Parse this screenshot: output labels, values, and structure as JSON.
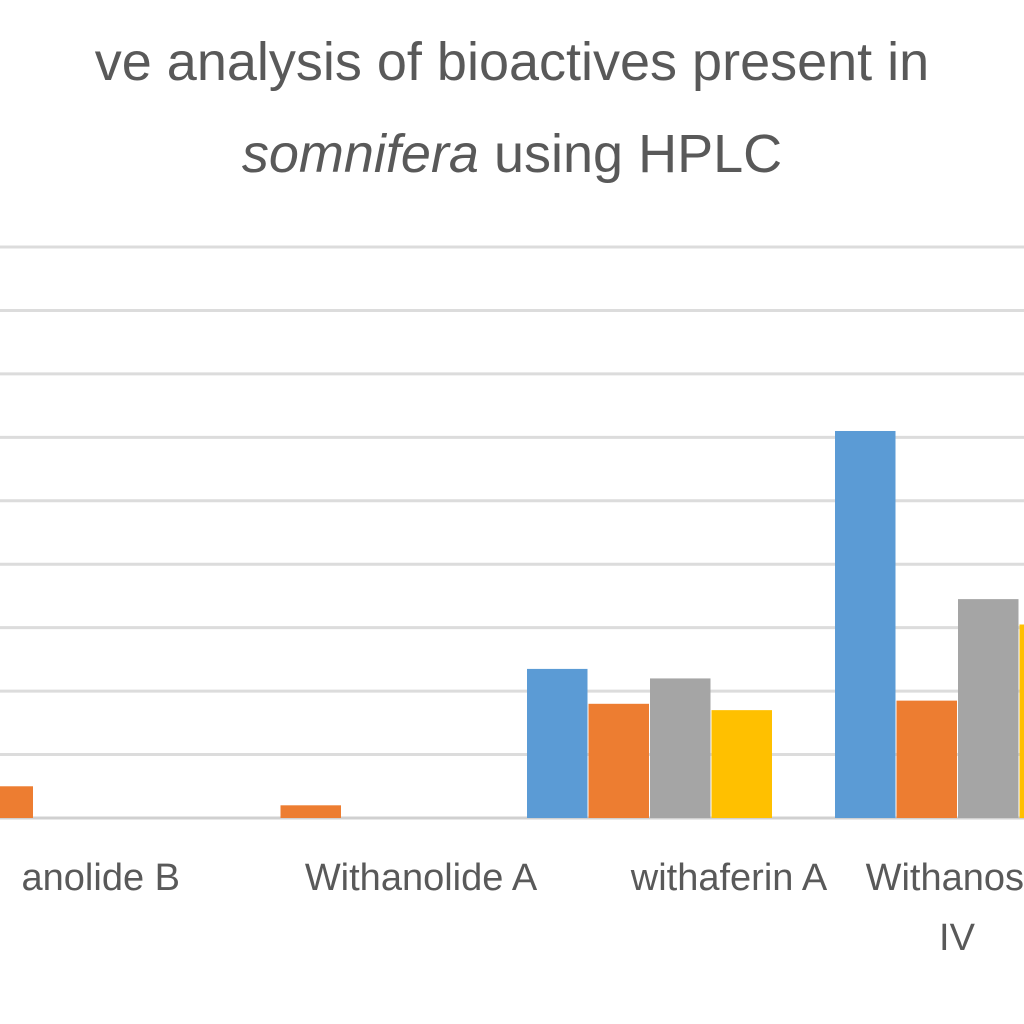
{
  "chart_data": {
    "type": "bar",
    "title_line1": "ve analysis of  bioactives present in",
    "title_line2_italic": "somnifera",
    "title_line2_rest": " using HPLC",
    "categories": [
      {
        "label_lines": [
          "anolide B"
        ]
      },
      {
        "label_lines": [
          "Withanolide A"
        ]
      },
      {
        "label_lines": [
          "withaferin A"
        ]
      },
      {
        "label_lines": [
          "Withanos",
          "IV"
        ]
      }
    ],
    "series": [
      {
        "color": "#5B9BD5",
        "values": [
          0,
          0,
          2.35,
          6.1
        ]
      },
      {
        "color": "#ED7D31",
        "values": [
          0.5,
          0.2,
          1.8,
          1.85
        ]
      },
      {
        "color": "#A5A5A5",
        "values": [
          0,
          0,
          2.2,
          3.45
        ]
      },
      {
        "color": "#FFC000",
        "values": [
          0,
          0,
          1.7,
          3.05
        ]
      }
    ],
    "ylim": [
      0,
      9
    ],
    "grid": true,
    "gridlines": [
      0,
      1,
      2,
      3,
      4,
      5,
      6,
      7,
      8,
      9
    ]
  }
}
